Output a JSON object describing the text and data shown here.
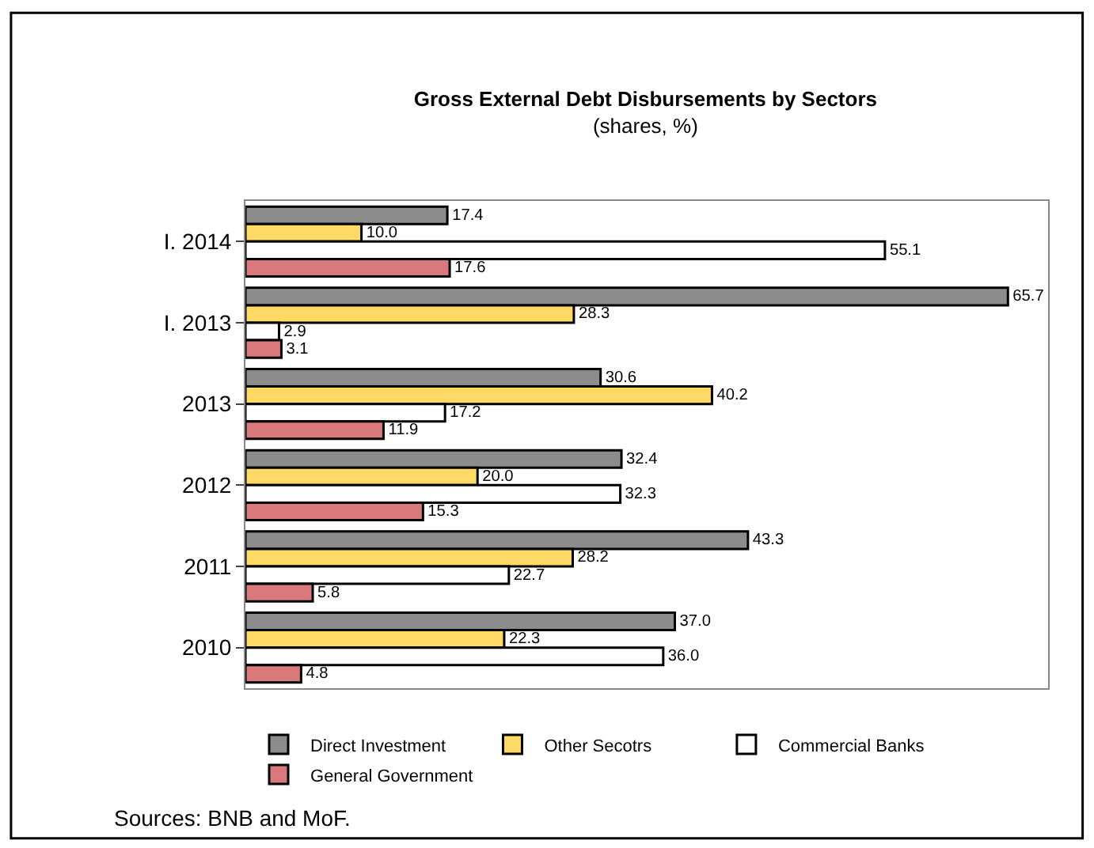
{
  "chart_data": {
    "type": "bar",
    "orientation": "horizontal",
    "title": "Gross External Debt Disbursements by Sectors",
    "subtitle": "(shares, %)",
    "categories": [
      "I. 2014",
      "I. 2013",
      "2013",
      "2012",
      "2011",
      "2010"
    ],
    "series": [
      {
        "name": "Direct Investment",
        "color": "#8c8c8c",
        "values": [
          17.4,
          65.7,
          30.6,
          32.4,
          43.3,
          37.0
        ],
        "value_labels": [
          "17.4",
          "65.7",
          "30.6",
          "32.4",
          "43.3",
          "37.0"
        ]
      },
      {
        "name": "Other Secotrs",
        "color": "#ffd966",
        "values": [
          10.0,
          28.3,
          40.2,
          20.0,
          28.2,
          22.3
        ],
        "value_labels": [
          "10.0",
          "28.3",
          "40.2",
          "20.0",
          "28.2",
          "22.3"
        ]
      },
      {
        "name": "Commercial Banks",
        "color": "#ffffff",
        "values": [
          55.1,
          2.9,
          17.2,
          32.3,
          22.7,
          36.0
        ],
        "value_labels": [
          "55.1",
          "2.9",
          "17.2",
          "32.3",
          "22.7",
          "36.0"
        ]
      },
      {
        "name": "General Government",
        "color": "#d9797b",
        "values": [
          17.6,
          3.1,
          11.9,
          15.3,
          5.8,
          4.8
        ],
        "value_labels": [
          "17.6",
          "3.1",
          "11.9",
          "15.3",
          "5.8",
          "4.8"
        ]
      }
    ],
    "legend": "bottom",
    "annotations": [
      "Sources: BNB and MoF."
    ]
  }
}
